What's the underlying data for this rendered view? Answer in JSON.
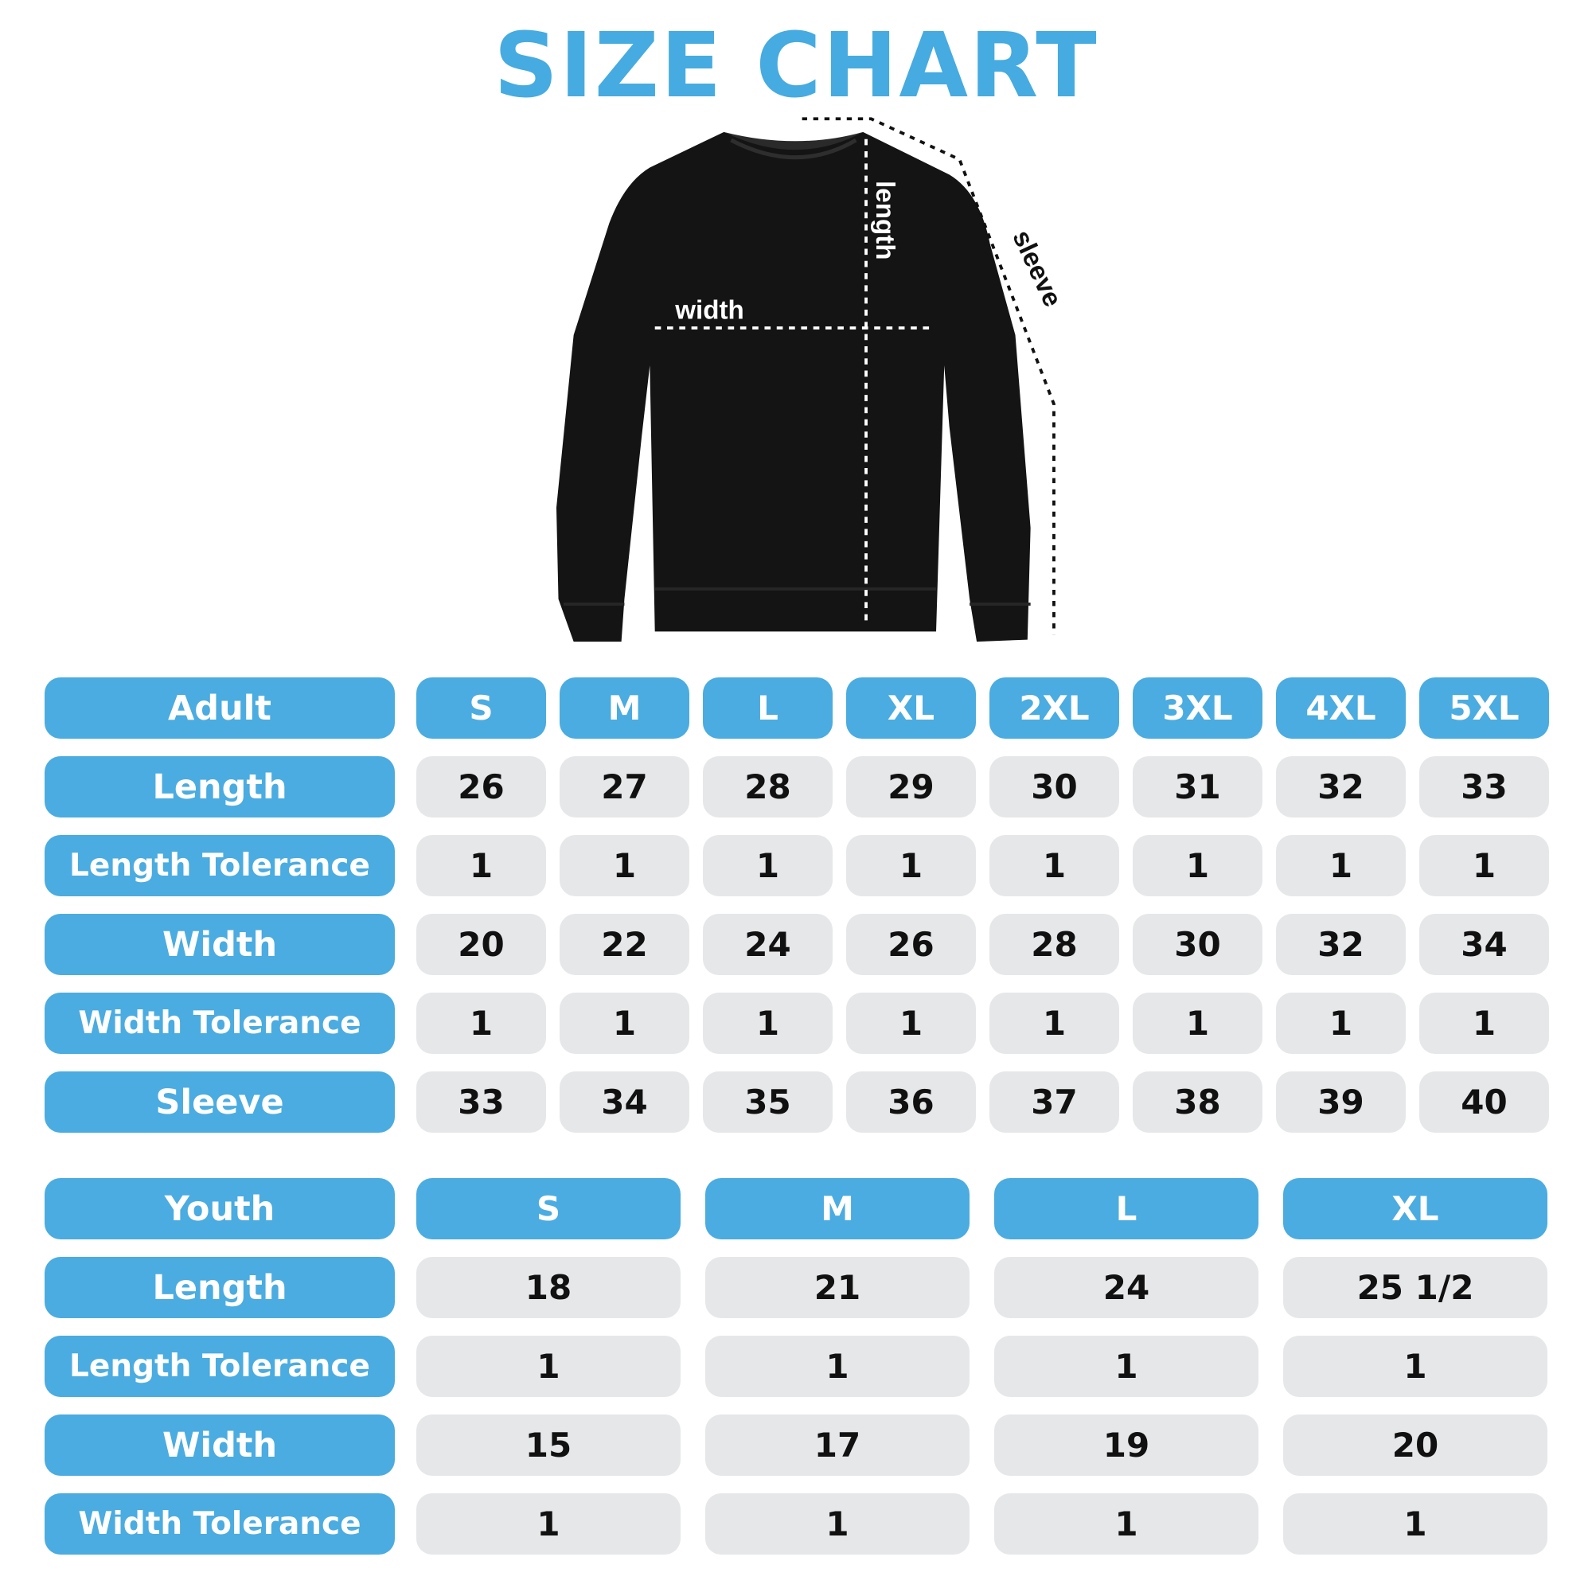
{
  "title": "SIZE CHART",
  "colors": {
    "accent": "#4AACE0",
    "cell_bg": "#E6E7E9",
    "garment": "#141414"
  },
  "diagram": {
    "width_label": "width",
    "length_label": "length",
    "sleeve_label": "sleeve"
  },
  "adult": {
    "header": "Adult",
    "sizes": [
      "S",
      "M",
      "L",
      "XL",
      "2XL",
      "3XL",
      "4XL",
      "5XL"
    ],
    "rows": [
      {
        "label": "Length",
        "values": [
          "26",
          "27",
          "28",
          "29",
          "30",
          "31",
          "32",
          "33"
        ]
      },
      {
        "label": "Length Tolerance",
        "values": [
          "1",
          "1",
          "1",
          "1",
          "1",
          "1",
          "1",
          "1"
        ]
      },
      {
        "label": "Width",
        "values": [
          "20",
          "22",
          "24",
          "26",
          "28",
          "30",
          "32",
          "34"
        ]
      },
      {
        "label": "Width Tolerance",
        "values": [
          "1",
          "1",
          "1",
          "1",
          "1",
          "1",
          "1",
          "1"
        ]
      },
      {
        "label": "Sleeve",
        "values": [
          "33",
          "34",
          "35",
          "36",
          "37",
          "38",
          "39",
          "40"
        ]
      }
    ]
  },
  "youth": {
    "header": "Youth",
    "sizes": [
      "S",
      "M",
      "L",
      "XL"
    ],
    "rows": [
      {
        "label": "Length",
        "values": [
          "18",
          "21",
          "24",
          "25 1/2"
        ]
      },
      {
        "label": "Length Tolerance",
        "values": [
          "1",
          "1",
          "1",
          "1"
        ]
      },
      {
        "label": "Width",
        "values": [
          "15",
          "17",
          "19",
          "20"
        ]
      },
      {
        "label": "Width Tolerance",
        "values": [
          "1",
          "1",
          "1",
          "1"
        ]
      }
    ]
  }
}
